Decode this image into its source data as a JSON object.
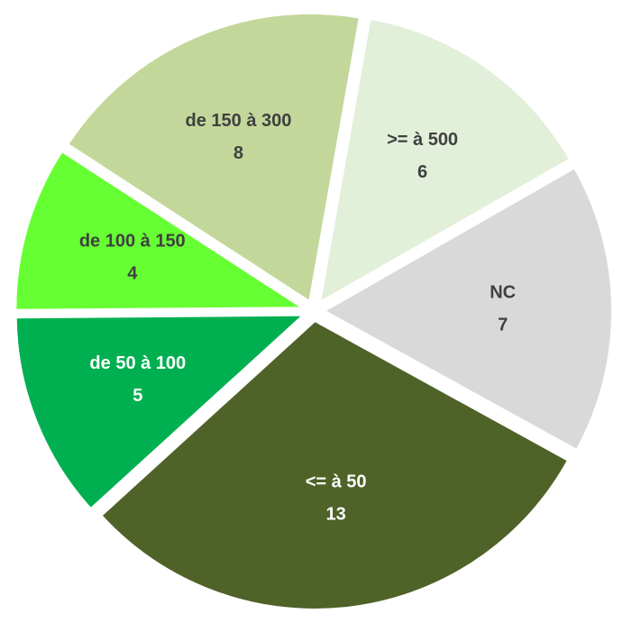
{
  "chart_data": {
    "type": "pie",
    "categories": [
      ">= à 500",
      "NC",
      "<= à  50",
      "de 50 à 100",
      "de 100 à 150",
      "de 150 à 300"
    ],
    "values": [
      6,
      7,
      13,
      5,
      4,
      8
    ],
    "colors": [
      "#e2efd9",
      "#d9d9d9",
      "#4f6228",
      "#00b050",
      "#66ff33",
      "#c4d79b"
    ],
    "label_colors": [
      "#404040",
      "#404040",
      "#ffffff",
      "#ffffff",
      "#404040",
      "#404040"
    ]
  }
}
